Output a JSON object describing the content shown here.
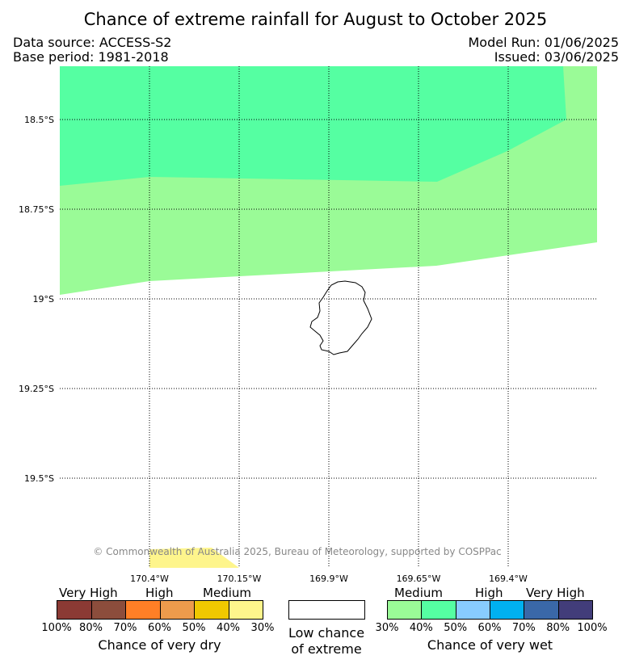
{
  "title": "Chance of extreme rainfall for August to October 2025",
  "data_source": "Data source: ACCESS-S2",
  "base_period": "Base period: 1981-2018",
  "model_run": "Model Run: 01/06/2025",
  "issued": "Issued: 03/06/2025",
  "copyright": "© Commonwealth of Australia 2025, Bureau of Meteorology, supported by COSPPac",
  "lat_labels": [
    "18.5°S",
    "18.75°S",
    "19°S",
    "19.25°S",
    "19.5°S"
  ],
  "lon_labels": [
    "170.4°W",
    "170.15°W",
    "169.9°W",
    "169.65°W",
    "169.4°W"
  ],
  "colors": {
    "wet_30_40": "#9afb97",
    "wet_40_50": "#55ffa2",
    "dry_30_40": "#fef58c",
    "land_outline": "#000000"
  },
  "legend": {
    "dry": {
      "title": "Chance of very dry",
      "categories": [
        "Very High",
        "High",
        "Medium"
      ],
      "ticks": [
        "100%",
        "80%",
        "70%",
        "60%",
        "50%",
        "40%",
        "30%"
      ],
      "colors": [
        "#8b3a34",
        "#8c4d3c",
        "#ff7f26",
        "#ed9b4c",
        "#f0c800",
        "#fef58c"
      ]
    },
    "neutral": {
      "label_line1": "Low chance",
      "label_line2": "of extreme",
      "color": "#ffffff"
    },
    "wet": {
      "title": "Chance of very wet",
      "categories": [
        "Medium",
        "High",
        "Very High"
      ],
      "ticks": [
        "30%",
        "40%",
        "50%",
        "60%",
        "70%",
        "80%",
        "100%"
      ],
      "colors": [
        "#9afb97",
        "#55ffa2",
        "#88ccff",
        "#00b0f0",
        "#3a68a8",
        "#423d7a"
      ]
    }
  }
}
